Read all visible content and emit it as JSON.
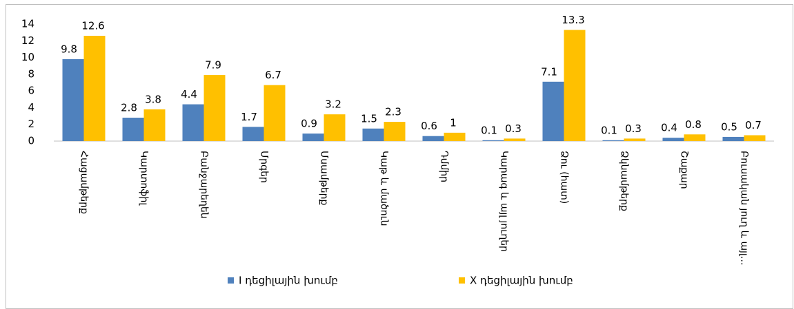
{
  "chart_data": {
    "type": "bar",
    "categories": [
      "Հացամթերք",
      "Կարտոֆիլ",
      "Բանջարեղեն",
      "Մրգեր",
      "Մսամթերք",
      "Կաթ և մածուն",
      "Դմմիր",
      "Կարագ և այլ յուղեր",
      "Ձու (հատ)",
      "Ձկնամթերք",
      "Շաքար",
      "Բուսական յուղ և այլ…"
    ],
    "series": [
      {
        "name": "I դեցիլային խումբ",
        "color": "#4f81bd",
        "values": [
          9.8,
          2.8,
          4.4,
          1.7,
          0.9,
          1.5,
          0.6,
          0.1,
          7.1,
          0.1,
          0.4,
          0.5
        ]
      },
      {
        "name": "X դեցիլային խումբ",
        "color": "#ffc000",
        "values": [
          12.6,
          3.8,
          7.9,
          6.7,
          3.2,
          2.3,
          1,
          0.3,
          13.3,
          0.3,
          0.8,
          0.7
        ]
      }
    ],
    "ylim": [
      0,
      14
    ],
    "yticks": [
      0,
      2,
      4,
      6,
      8,
      10,
      12,
      14
    ],
    "grid": false,
    "legend": "bottom"
  }
}
